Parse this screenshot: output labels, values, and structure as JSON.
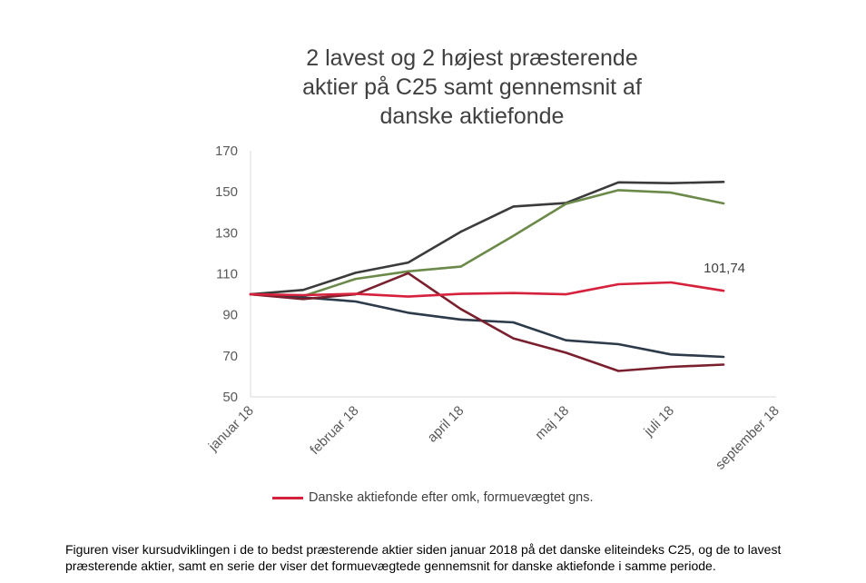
{
  "chart_data": {
    "type": "line",
    "title": [
      "2 lavest og  2 højest præsterende",
      "aktier på C25 samt gennemsnit af",
      "danske aktiefonde"
    ],
    "xlabel": "",
    "ylabel": "",
    "ylim": [
      50,
      170
    ],
    "yticks": [
      "170",
      "150",
      "130",
      "110",
      "90",
      "70",
      "50"
    ],
    "ytick_values": [
      170,
      150,
      130,
      110,
      90,
      70,
      50
    ],
    "x_tick_labels": [
      "januar 18",
      "februar 18",
      "april 18",
      "maj 18",
      "juli 18",
      "september 18"
    ],
    "x_tick_index": [
      0,
      2,
      4,
      6,
      8,
      10
    ],
    "n_points": 11,
    "grid": false,
    "legend_position": "bottom",
    "series": [
      {
        "name": "Danske  aktiefonde efter omk, formuevægtet gns.",
        "color": "#d6213c",
        "values": [
          100,
          99.6,
          100.2,
          98.9,
          100.2,
          100.6,
          100.0,
          104.9,
          105.8,
          101.74,
          null
        ],
        "data_label": "101,74"
      },
      {
        "name": "",
        "color": "#3b3b3b",
        "values": [
          100,
          102.1,
          110.5,
          115.5,
          130.5,
          142.8,
          144.5,
          154.6,
          154.2,
          154.8,
          null
        ]
      },
      {
        "name": "",
        "color": "#6b8a4a",
        "values": [
          100,
          99.1,
          107.5,
          111.2,
          113.5,
          128.5,
          144.1,
          150.8,
          149.6,
          144.3,
          null
        ]
      },
      {
        "name": "",
        "color": "#2d3a4a",
        "values": [
          100,
          98.5,
          96.5,
          91.0,
          87.7,
          86.3,
          77.6,
          75.7,
          70.7,
          69.5,
          null
        ]
      },
      {
        "name": "",
        "color": "#7a1f2e",
        "values": [
          100,
          97.7,
          100.0,
          110.3,
          92.8,
          78.5,
          71.5,
          62.6,
          64.6,
          65.7,
          null
        ]
      }
    ]
  },
  "legend": {
    "label": "Danske  aktiefonde efter omk, formuevægtet gns.",
    "color": "#d6213c"
  },
  "caption": "Figuren viser kursudviklingen i de to bedst præsterende aktier siden januar 2018 på det danske eliteindeks C25, og de to lavest præsterende aktier, samt en serie der viser det formuevægtede gennemsnit for danske aktiefonde i samme periode."
}
